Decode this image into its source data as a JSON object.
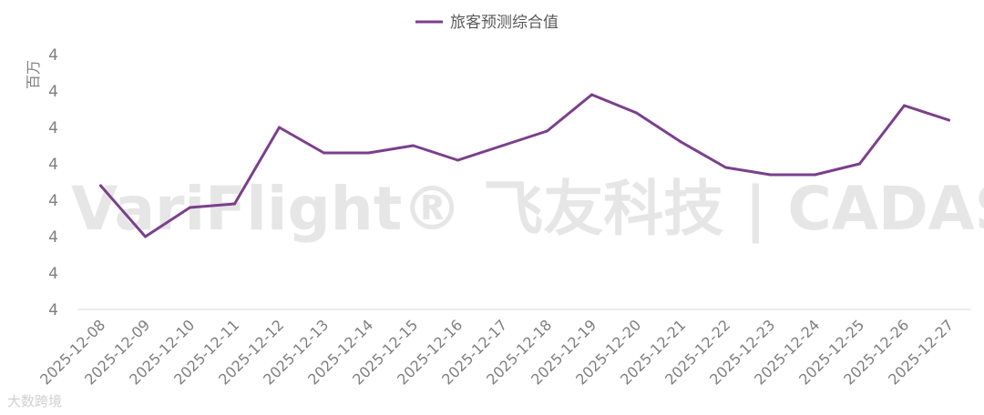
{
  "chart_data": {
    "type": "line",
    "title": "",
    "xlabel": "",
    "ylabel": "百万",
    "categories": [
      "2025-12-08",
      "2025-12-09",
      "2025-12-10",
      "2025-12-11",
      "2025-12-12",
      "2025-12-13",
      "2025-12-14",
      "2025-12-15",
      "2025-12-16",
      "2025-12-17",
      "2025-12-18",
      "2025-12-19",
      "2025-12-20",
      "2025-12-21",
      "2025-12-22",
      "2025-12-23",
      "2025-12-24",
      "2025-12-25",
      "2025-12-26",
      "2025-12-27"
    ],
    "y_tick_labels": [
      "4",
      "4",
      "4",
      "4",
      "4",
      "4",
      "4",
      "4"
    ],
    "ylim": [
      3.55,
      4.25
    ],
    "grid": false,
    "legend_position": "top-center",
    "series": [
      {
        "name": "旅客预测综合值",
        "color": "#7b3f8c",
        "values": [
          3.89,
          3.75,
          3.83,
          3.84,
          4.05,
          3.98,
          3.98,
          4.0,
          3.96,
          4.0,
          4.04,
          4.14,
          4.09,
          4.01,
          3.94,
          3.92,
          3.92,
          3.95,
          4.11,
          4.07
        ]
      }
    ]
  },
  "watermark": {
    "brand": "VariFlight® 飞友科技 | CADAS®",
    "footer": "大数跨境"
  }
}
